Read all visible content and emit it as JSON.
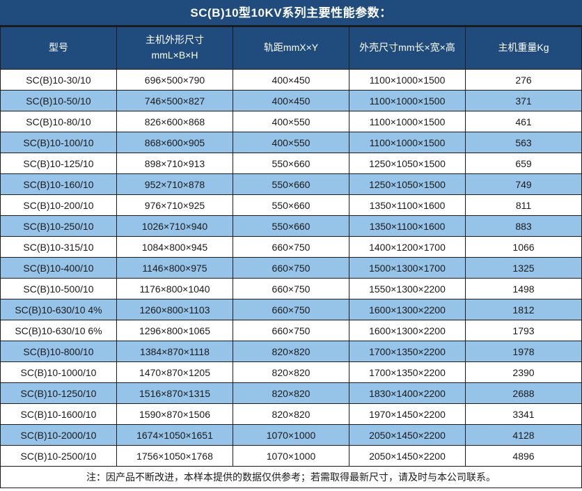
{
  "title": "SC(B)10型10KV系列主要性能参数：",
  "colors": {
    "header_bg": "#1f4c7c",
    "alt_row_bg": "#96c3e8",
    "grid_border": "#1b1b1b",
    "header_text": "#ffffff",
    "body_text": "#1a1a1a"
  },
  "table": {
    "headers": [
      {
        "name": "model",
        "lines": [
          "型号"
        ]
      },
      {
        "name": "host-dimensions",
        "lines": [
          "主机外形尺寸",
          "mmL×B×H"
        ]
      },
      {
        "name": "rail-gauge",
        "lines": [
          "轨距mmX×Y"
        ]
      },
      {
        "name": "enclosure-size",
        "lines": [
          "外壳尺寸mm长×宽×高"
        ]
      },
      {
        "name": "host-weight",
        "lines": [
          "主机重量Kg"
        ]
      }
    ],
    "rows": [
      [
        "SC(B)10-30/10",
        "696×500×790",
        "400×450",
        "1100×1000×1500",
        "276"
      ],
      [
        "SC(B)10-50/10",
        "746×500×827",
        "400×450",
        "1100×1000×1500",
        "371"
      ],
      [
        "SC(B)10-80/10",
        "826×600×868",
        "400×550",
        "1100×1000×1500",
        "461"
      ],
      [
        "SC(B)10-100/10",
        "868×600×905",
        "400×550",
        "1100×1000×1500",
        "563"
      ],
      [
        "SC(B)10-125/10",
        "898×710×913",
        "550×660",
        "1250×1050×1500",
        "659"
      ],
      [
        "SC(B)10-160/10",
        "952×710×878",
        "550×660",
        "1250×1050×1500",
        "749"
      ],
      [
        "SC(B)10-200/10",
        "976×710×925",
        "550×660",
        "1350×1100×1600",
        "811"
      ],
      [
        "SC(B)10-250/10",
        "1026×710×940",
        "550×660",
        "1350×1100×1600",
        "883"
      ],
      [
        "SC(B)10-315/10",
        "1084×800×945",
        "660×750",
        "1400×1200×1700",
        "1066"
      ],
      [
        "SC(B)10-400/10",
        "1146×800×975",
        "660×750",
        "1500×1300×1700",
        "1325"
      ],
      [
        "SC(B)10-500/10",
        "1176×800×1040",
        "660×750",
        "1550×1300×2200",
        "1498"
      ],
      [
        "SC(B)10-630/10 4%",
        "1260×800×1103",
        "660×750",
        "1600×1300×2200",
        "1812"
      ],
      [
        "SC(B)10-630/10 6%",
        "1296×800×1065",
        "660×750",
        "1600×1300×2200",
        "1793"
      ],
      [
        "SC(B)10-800/10",
        "1384×870×1118",
        "820×820",
        "1700×1350×2200",
        "1978"
      ],
      [
        "SC(B)10-1000/10",
        "1470×870×1205",
        "820×820",
        "1700×1350×2200",
        "2390"
      ],
      [
        "SC(B)10-1250/10",
        "1516×870×1315",
        "820×820",
        "1830×1400×2200",
        "2688"
      ],
      [
        "SC(B)10-1600/10",
        "1590×870×1506",
        "820×820",
        "1970×1450×2200",
        "3341"
      ],
      [
        "SC(B)10-2000/10",
        "1674×1050×1651",
        "1070×1000",
        "2050×1450×2200",
        "4128"
      ],
      [
        "SC(B)10-2500/10",
        "1756×1050×1768",
        "1070×1000",
        "2050×1450×2200",
        "4896"
      ]
    ]
  },
  "note": "注：因产品不断改进，本样本提供的数据仅供参考；若需取得最新尺寸，请及时与本公司联系。"
}
